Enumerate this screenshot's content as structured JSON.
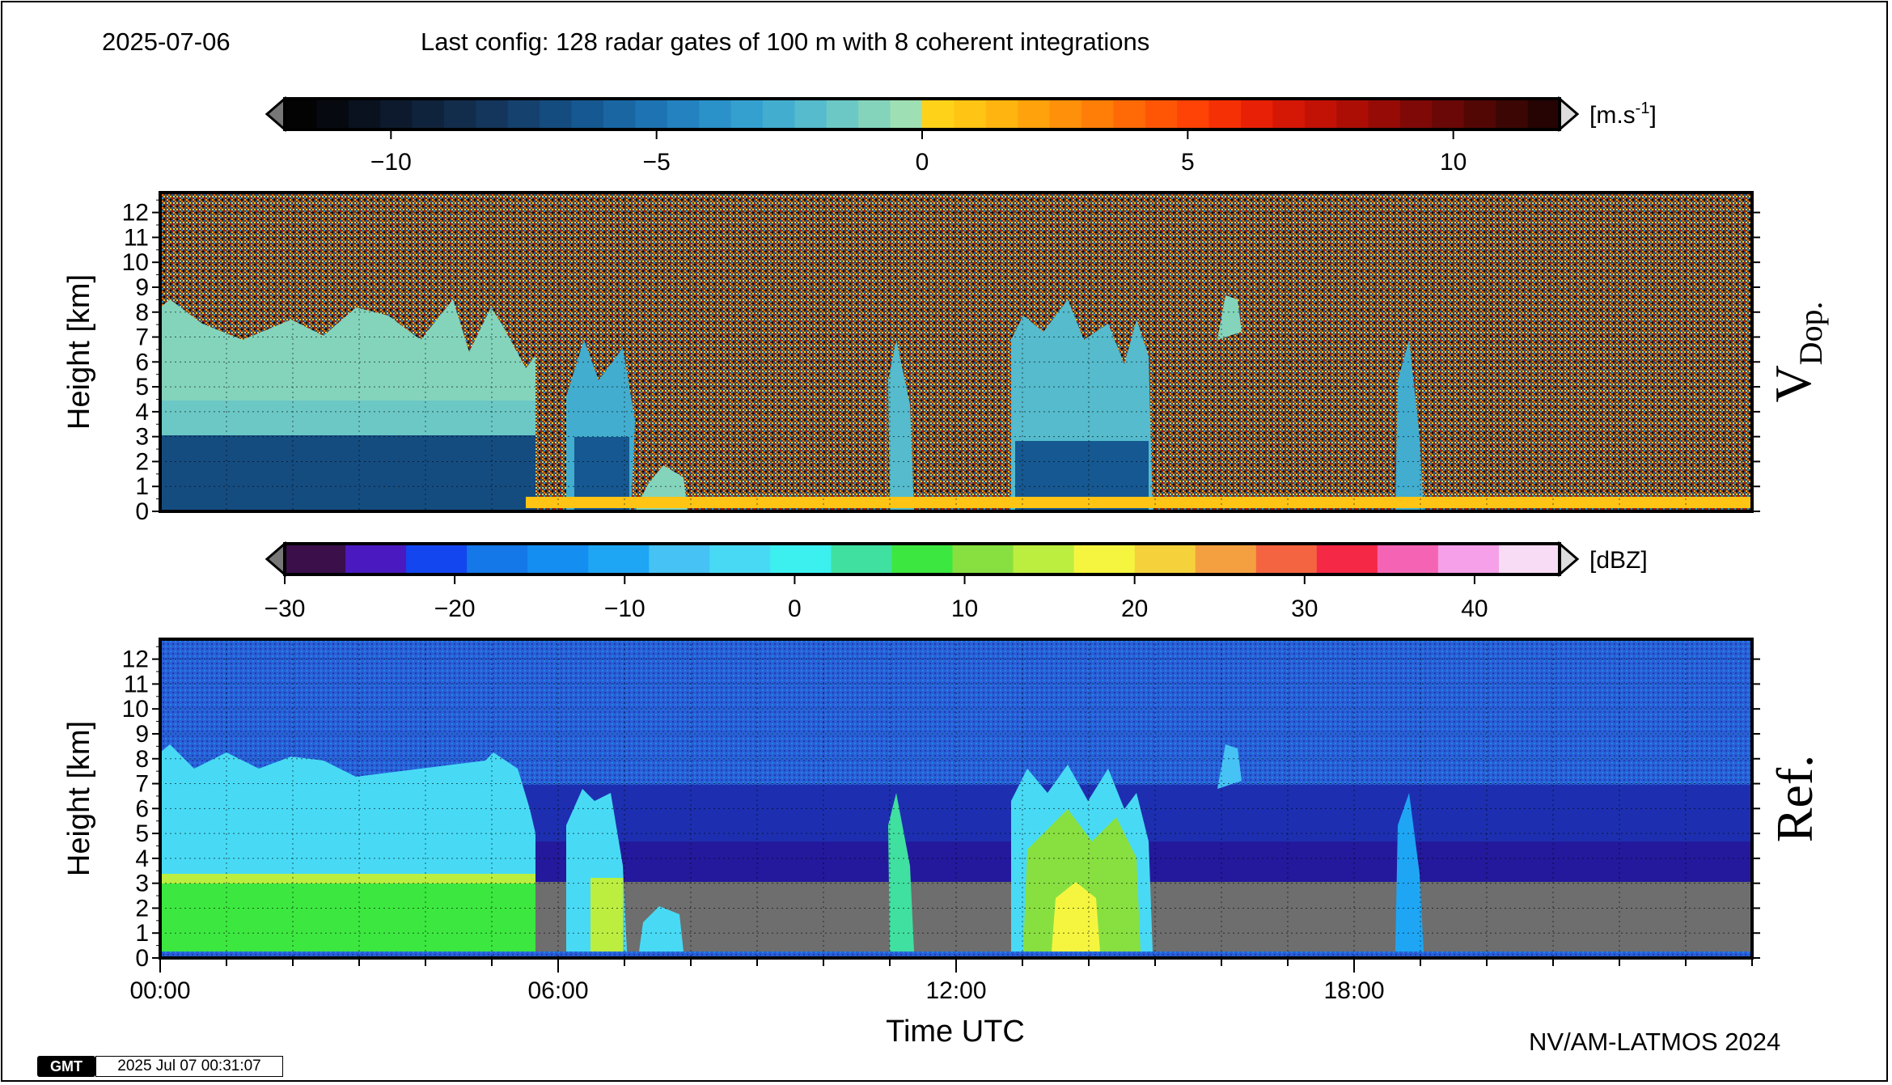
{
  "header": {
    "date": "2025-07-06",
    "config": "Last config: 128 radar gates of 100 m with 8 coherent integrations"
  },
  "footer": {
    "credit": "NV/AM-LATMOS 2024",
    "logo_text": "GMT",
    "timestamp": "2025 Jul 07 00:31:07"
  },
  "chart_data": [
    {
      "type": "heatmap",
      "name": "doppler_velocity",
      "panel_label": "V",
      "panel_label_sub": "Dop.",
      "ylabel": "Height [km]",
      "ylim": [
        0,
        12.8
      ],
      "yticks": [
        "0",
        "1",
        "2",
        "3",
        "4",
        "5",
        "6",
        "7",
        "8",
        "9",
        "10",
        "11",
        "12"
      ],
      "xlim_hours": [
        0,
        24
      ],
      "grid": true,
      "colorbar": {
        "unit": "[m.s",
        "unit_sup": "-1",
        "unit_close": "]",
        "range": [
          -12,
          12
        ],
        "ticks": [
          "−10",
          "−5",
          "0",
          "5",
          "10"
        ],
        "tick_values": [
          -10,
          -5,
          0,
          5,
          10
        ],
        "colors": [
          "#030303",
          "#06090f",
          "#0a1220",
          "#0d1a2e",
          "#10233c",
          "#122c4c",
          "#14365c",
          "#15416e",
          "#154c80",
          "#165891",
          "#1a66a3",
          "#1e74b2",
          "#2382bf",
          "#2a91c9",
          "#34a0cf",
          "#42adcf",
          "#55bbcd",
          "#6cc8c5",
          "#84d4bc",
          "#9ee0b3",
          "#ffd21a",
          "#ffc414",
          "#ffb40f",
          "#ffa20c",
          "#ff900a",
          "#ff7e08",
          "#ff6a07",
          "#ff5606",
          "#ff4205",
          "#f63005",
          "#e82005",
          "#d51706",
          "#c21206",
          "#ac0e06",
          "#960b06",
          "#7f0906",
          "#690806",
          "#520705",
          "#3c0604",
          "#250403"
        ]
      }
    },
    {
      "type": "heatmap",
      "name": "reflectivity",
      "panel_label": "Ref.",
      "ylabel": "Height [km]",
      "xlabel": "Time UTC",
      "ylim": [
        0,
        12.8
      ],
      "yticks": [
        "0",
        "1",
        "2",
        "3",
        "4",
        "5",
        "6",
        "7",
        "8",
        "9",
        "10",
        "11",
        "12"
      ],
      "xticks": [
        "00:00",
        "06:00",
        "12:00",
        "18:00"
      ],
      "xtick_hours": [
        0,
        6,
        12,
        18
      ],
      "xlim_hours": [
        0,
        24
      ],
      "grid": true,
      "colorbar": {
        "unit": "[dBZ]",
        "range": [
          -30,
          45
        ],
        "ticks": [
          "−30",
          "−20",
          "−10",
          "0",
          "10",
          "20",
          "30",
          "40"
        ],
        "tick_values": [
          -30,
          -20,
          -10,
          0,
          10,
          20,
          30,
          40
        ],
        "colors": [
          "#3a0f4a",
          "#4a1ac0",
          "#1446f0",
          "#1478e8",
          "#148ef0",
          "#1ea6f5",
          "#46c2f5",
          "#48daf5",
          "#3cf0f0",
          "#40e0a0",
          "#3ce840",
          "#88e040",
          "#bcee40",
          "#f5f540",
          "#f5d23c",
          "#f5a040",
          "#f56440",
          "#f52846",
          "#f564b4",
          "#f5a0e8",
          "#f8dcf5"
        ]
      }
    }
  ]
}
